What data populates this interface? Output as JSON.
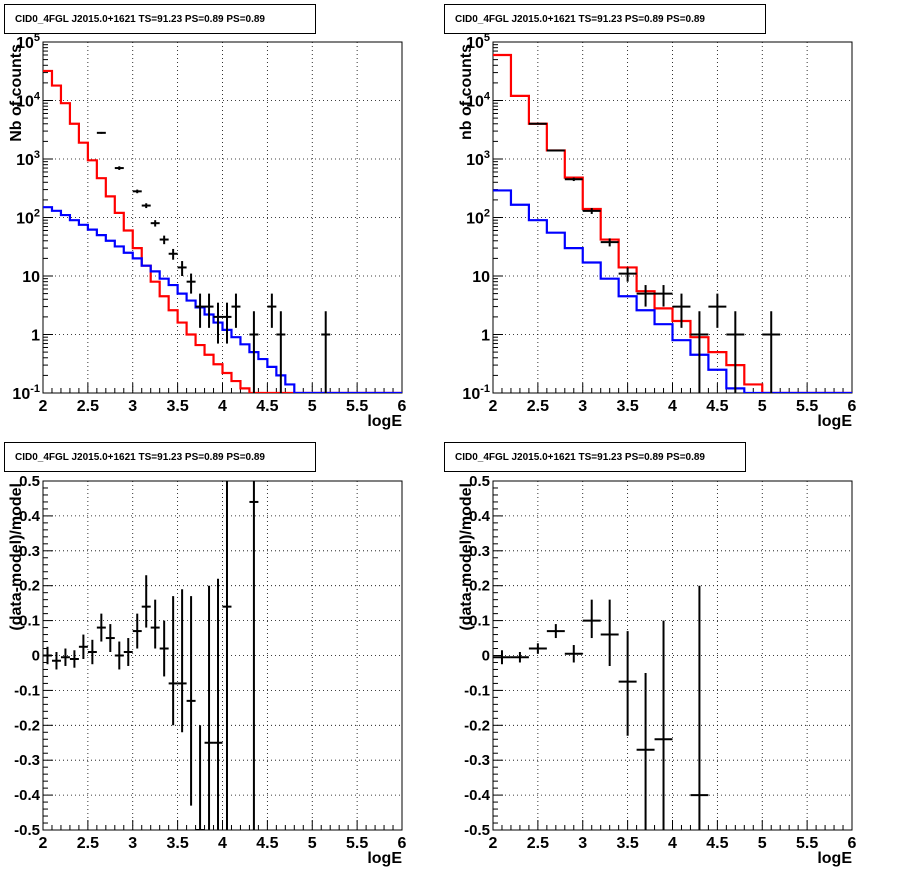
{
  "colors": {
    "data": "#000000",
    "total_model": "#ff0000",
    "background_model": "#0000ff",
    "grid": "#000000"
  },
  "chart_data": [
    {
      "type": "line",
      "title": "CID0_4FGL J2015.0+1621 TS=91.23 PS=0.89 PS=0.89",
      "xlabel": "logE",
      "ylabel": "Nb of counts",
      "xlim": [
        2,
        6
      ],
      "ylim": [
        0.1,
        100000
      ],
      "log_y": true,
      "grid": true,
      "x_ticks": [
        "2",
        "2.5",
        "3",
        "3.5",
        "4",
        "4.5",
        "5",
        "5.5",
        "6"
      ],
      "y_ticks": [
        "10^{-1}",
        "1",
        "10",
        "10^{2}",
        "10^{3}",
        "10^{4}",
        "10^{5}"
      ],
      "bin_edges": [
        2.0,
        2.1,
        2.2,
        2.3,
        2.4,
        2.5,
        2.6,
        2.7,
        2.8,
        2.9,
        3.0,
        3.1,
        3.2,
        3.3,
        3.4,
        3.5,
        3.6,
        3.7,
        3.8,
        3.9,
        4.0,
        4.1,
        4.2,
        4.3,
        4.4,
        4.5,
        4.6,
        4.7,
        4.8,
        4.9,
        5.0,
        5.1,
        5.2,
        5.3,
        5.4,
        5.5,
        5.6,
        5.7,
        5.8,
        5.9,
        6.0
      ],
      "series": [
        {
          "role": "total_model",
          "values": [
            32000,
            18000,
            9000,
            4000,
            1900,
            950,
            470,
            230,
            120,
            60,
            30,
            15,
            8,
            4.5,
            2.6,
            1.6,
            1.0,
            0.66,
            0.45,
            0.31,
            0.22,
            0.16,
            0.12,
            0.1,
            0.1,
            0.1,
            0.1,
            0.1,
            0.1,
            0.1,
            0.1,
            0.1,
            0.1,
            0.1,
            0.1,
            0.1,
            0.1,
            0.1,
            0.1,
            0.1
          ]
        },
        {
          "role": "background_model",
          "values": [
            150,
            130,
            110,
            90,
            75,
            62,
            50,
            40,
            32,
            25,
            20,
            15,
            12,
            9,
            7,
            5,
            3.8,
            2.9,
            2.2,
            1.6,
            1.2,
            0.9,
            0.68,
            0.5,
            0.38,
            0.28,
            0.2,
            0.14,
            0.1,
            0.1,
            0.1,
            0.1,
            0.1,
            0.1,
            0.1,
            0.1,
            0.1,
            0.1,
            0.1,
            0.1
          ]
        },
        {
          "role": "data",
          "x": [
            2.65,
            2.85,
            3.05,
            3.15,
            3.25,
            3.35,
            3.45,
            3.55,
            3.65,
            3.75,
            3.85,
            3.95,
            4.05,
            4.15,
            4.35,
            4.55,
            4.65,
            5.15
          ],
          "y": [
            2800,
            700,
            280,
            160,
            80,
            42,
            24,
            14,
            8,
            3,
            3,
            2,
            2,
            3,
            1,
            3,
            1,
            1
          ],
          "ylo": [
            2700,
            650,
            260,
            145,
            70,
            35,
            19,
            10,
            5,
            1.3,
            1.3,
            0.7,
            0.7,
            1.3,
            0.1,
            1.3,
            0.1,
            0.1
          ],
          "yhi": [
            2900,
            750,
            300,
            175,
            90,
            49,
            29,
            18,
            11,
            5,
            5,
            3.5,
            3.5,
            5,
            2.5,
            5,
            2.5,
            2.5
          ],
          "xerr": 0.05
        }
      ]
    },
    {
      "type": "line",
      "title": "CID0_4FGL J2015.0+1621 TS=91.23 PS=0.89 PS=0.89",
      "xlabel": "logE",
      "ylabel": "nb of counts",
      "xlim": [
        2,
        6
      ],
      "ylim": [
        0.1,
        100000
      ],
      "log_y": true,
      "grid": true,
      "x_ticks": [
        "2",
        "2.5",
        "3",
        "3.5",
        "4",
        "4.5",
        "5",
        "5.5",
        "6"
      ],
      "y_ticks": [
        "10^{-1}",
        "1",
        "10",
        "10^{2}",
        "10^{3}",
        "10^{4}",
        "10^{5}"
      ],
      "bin_edges": [
        2.0,
        2.2,
        2.4,
        2.6,
        2.8,
        3.0,
        3.2,
        3.4,
        3.6,
        3.8,
        4.0,
        4.2,
        4.4,
        4.6,
        4.8,
        5.0,
        5.2,
        5.4,
        5.6,
        5.8,
        6.0
      ],
      "series": [
        {
          "role": "total_model",
          "values": [
            60000,
            12000,
            4000,
            1400,
            480,
            140,
            42,
            14,
            5.5,
            2.8,
            1.7,
            0.9,
            0.5,
            0.3,
            0.14,
            0.1,
            0.1,
            0.1,
            0.1,
            0.1
          ]
        },
        {
          "role": "background_model",
          "values": [
            290,
            165,
            90,
            55,
            30,
            17,
            9,
            4.5,
            2.6,
            1.5,
            0.8,
            0.45,
            0.25,
            0.12,
            0.1,
            0.1,
            0.1,
            0.1,
            0.1,
            0.1
          ]
        },
        {
          "role": "data",
          "x": [
            2.5,
            2.7,
            2.9,
            3.1,
            3.3,
            3.5,
            3.7,
            3.9,
            4.1,
            4.3,
            4.5,
            4.7,
            4.9,
            5.1
          ],
          "y": [
            4000,
            1400,
            450,
            130,
            38,
            11,
            5,
            5,
            3,
            1,
            3,
            1,
            0,
            1
          ],
          "ylo": [
            3900,
            1350,
            420,
            115,
            32,
            8,
            3,
            3,
            1.3,
            0.1,
            1.3,
            0.1,
            0,
            0.1
          ],
          "yhi": [
            4100,
            1450,
            480,
            145,
            44,
            14,
            7,
            7,
            5,
            2.5,
            5,
            2.5,
            0,
            2.5
          ],
          "xerr": 0.1
        }
      ]
    },
    {
      "type": "scatter",
      "title": "CID0_4FGL J2015.0+1621 TS=91.23 PS=0.89 PS=0.89",
      "xlabel": "logE",
      "ylabel": "(data-model)/model",
      "xlim": [
        2,
        6
      ],
      "ylim": [
        -0.5,
        0.5
      ],
      "grid": true,
      "x_ticks": [
        "2",
        "2.5",
        "3",
        "3.5",
        "4",
        "4.5",
        "5",
        "5.5",
        "6"
      ],
      "y_ticks": [
        "-0.5",
        "-0.4",
        "-0.3",
        "-0.2",
        "-0.1",
        "0",
        "0.1",
        "0.2",
        "0.3",
        "0.4",
        "0.5"
      ],
      "series": [
        {
          "role": "data",
          "x": [
            2.05,
            2.15,
            2.25,
            2.35,
            2.45,
            2.55,
            2.65,
            2.75,
            2.85,
            2.95,
            3.05,
            3.15,
            3.25,
            3.35,
            3.45,
            3.55,
            3.65,
            3.75,
            3.85,
            3.95,
            4.05,
            4.35
          ],
          "y": [
            0.0,
            -0.015,
            -0.005,
            -0.01,
            0.025,
            0.01,
            0.08,
            0.05,
            0.0,
            0.01,
            0.07,
            0.14,
            0.08,
            0.02,
            -0.08,
            -0.08,
            -0.13,
            -0.5,
            -0.25,
            -0.25,
            0.14,
            0.44
          ],
          "ylo": [
            -0.025,
            -0.04,
            -0.03,
            -0.035,
            -0.01,
            -0.025,
            0.04,
            0.01,
            -0.04,
            -0.03,
            0.02,
            0.08,
            0.02,
            -0.06,
            -0.2,
            -0.22,
            -0.43,
            -0.6,
            -0.6,
            -0.6,
            -0.6,
            -0.6
          ],
          "yhi": [
            0.025,
            0.01,
            0.02,
            0.015,
            0.06,
            0.045,
            0.12,
            0.09,
            0.04,
            0.05,
            0.12,
            0.23,
            0.16,
            0.1,
            0.17,
            0.19,
            0.17,
            -0.2,
            0.2,
            0.22,
            0.6,
            0.6
          ],
          "xerr": 0.05
        }
      ]
    },
    {
      "type": "scatter",
      "title": "CID0_4FGL J2015.0+1621 TS=91.23 PS=0.89 PS=0.89",
      "xlabel": "logE",
      "ylabel": "(data-model)/model",
      "xlim": [
        2,
        6
      ],
      "ylim": [
        -0.5,
        0.5
      ],
      "grid": true,
      "x_ticks": [
        "2",
        "2.5",
        "3",
        "3.5",
        "4",
        "4.5",
        "5",
        "5.5",
        "6"
      ],
      "y_ticks": [
        "-0.5",
        "-0.4",
        "-0.3",
        "-0.2",
        "-0.1",
        "0",
        "0.1",
        "0.2",
        "0.3",
        "0.4",
        "0.5"
      ],
      "series": [
        {
          "role": "data",
          "x": [
            2.1,
            2.3,
            2.5,
            2.7,
            2.9,
            3.1,
            3.3,
            3.5,
            3.7,
            3.9,
            4.3
          ],
          "y": [
            -0.005,
            -0.005,
            0.02,
            0.07,
            0.005,
            0.1,
            0.06,
            -0.075,
            -0.27,
            -0.24,
            -0.4
          ],
          "ylo": [
            -0.025,
            -0.02,
            0.005,
            0.05,
            -0.02,
            0.05,
            -0.03,
            -0.23,
            -0.6,
            -0.6,
            -0.6
          ],
          "yhi": [
            0.015,
            0.01,
            0.035,
            0.09,
            0.03,
            0.16,
            0.16,
            0.07,
            -0.05,
            0.1,
            0.2
          ],
          "xerr": 0.1
        }
      ]
    }
  ]
}
